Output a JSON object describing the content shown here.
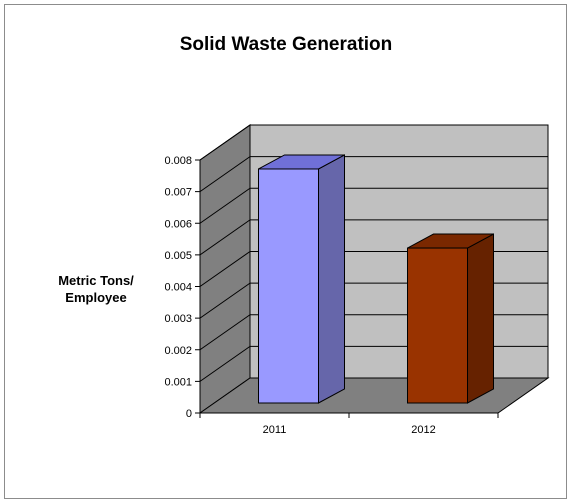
{
  "chart_data": {
    "type": "bar",
    "title": "Solid Waste Generation",
    "ylabel_lines": [
      "Metric Tons/",
      "Employee"
    ],
    "xlabel": "",
    "categories": [
      "2011",
      "2012"
    ],
    "values": [
      0.0074,
      0.0049
    ],
    "ylim": [
      0,
      0.008
    ],
    "yticks": [
      "0",
      "0.001",
      "0.002",
      "0.003",
      "0.004",
      "0.005",
      "0.006",
      "0.007",
      "0.008"
    ],
    "grid": true,
    "legend": "none",
    "style": "3d-column",
    "colors": {
      "bars": [
        {
          "front": "#9999ff",
          "top": "#7070d8",
          "side": "#6666aa"
        },
        {
          "front": "#993300",
          "top": "#7a2800",
          "side": "#662200"
        }
      ],
      "back_wall": "#c0c0c0",
      "side_wall": "#808080",
      "floor": "#808080"
    }
  }
}
